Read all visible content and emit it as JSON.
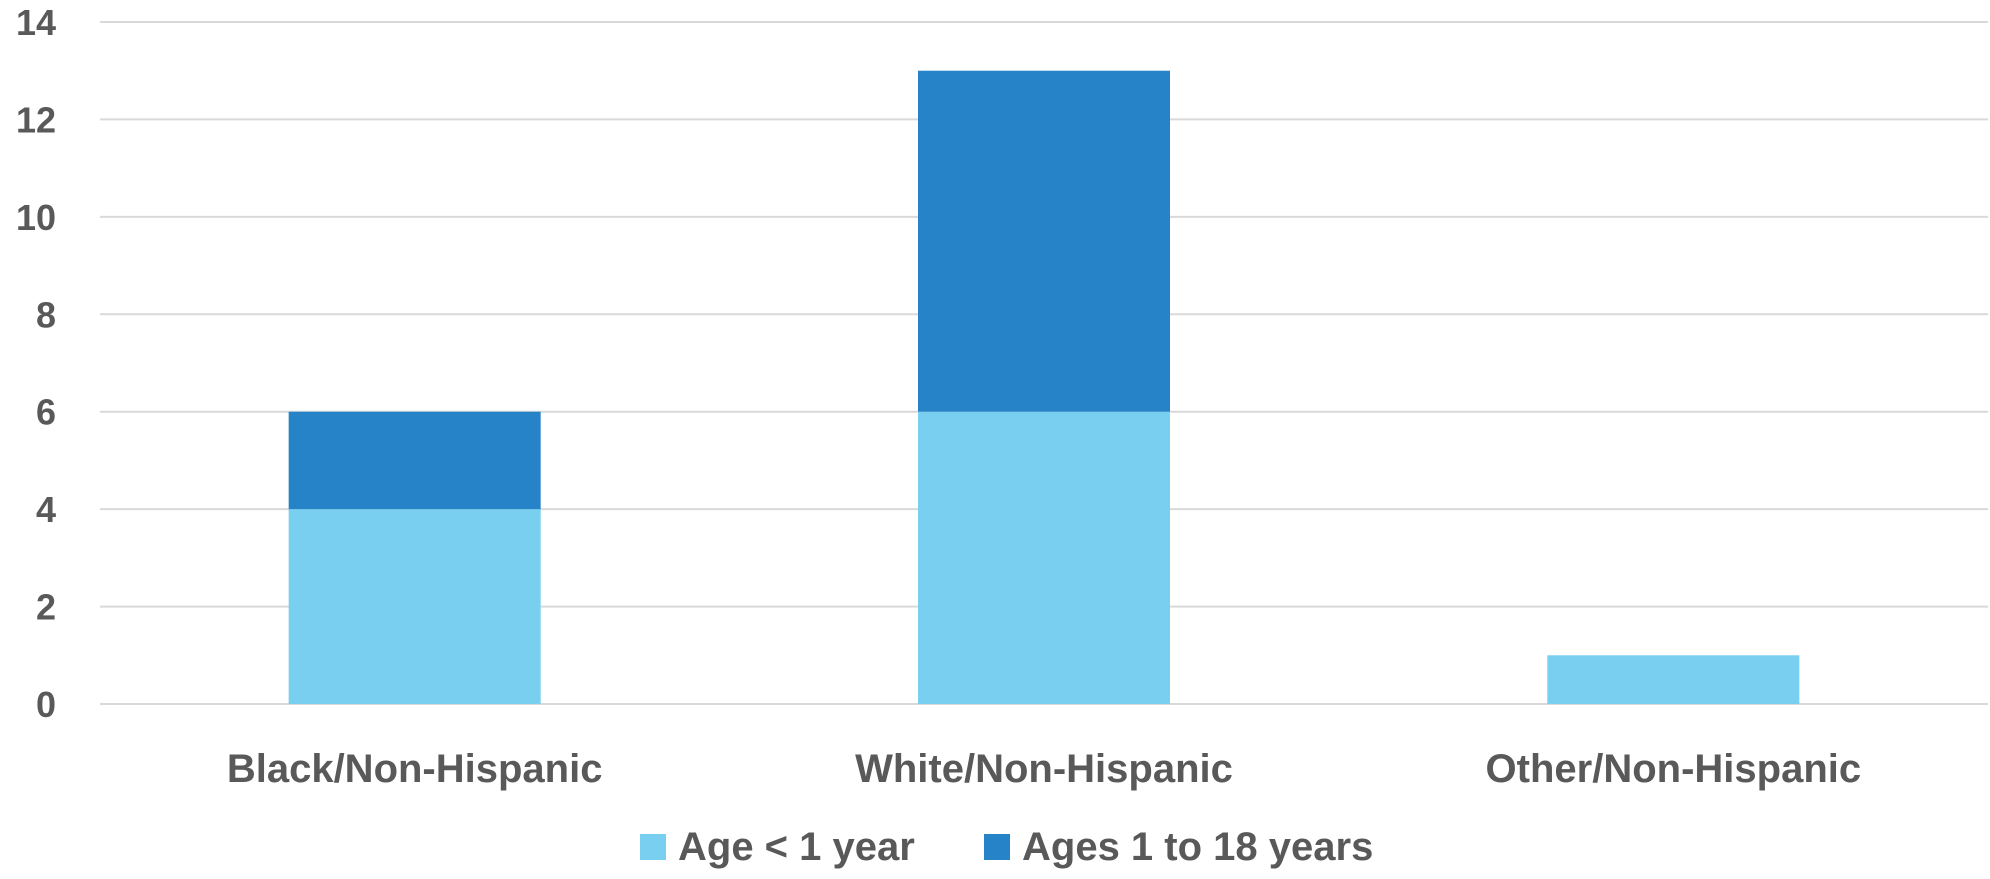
{
  "chart_data": {
    "type": "bar",
    "stacked": true,
    "categories": [
      "Black/Non-Hispanic",
      "White/Non-Hispanic",
      "Other/Non-Hispanic"
    ],
    "series": [
      {
        "name": "Age < 1 year",
        "values": [
          4,
          6,
          1
        ],
        "color": "#78cfef"
      },
      {
        "name": "Ages 1 to 18 years",
        "values": [
          2,
          7,
          0
        ],
        "color": "#2783c7"
      }
    ],
    "ylim": [
      0,
      14
    ],
    "yticks": [
      "0",
      "2",
      "4",
      "6",
      "8",
      "10",
      "12",
      "14"
    ],
    "grid": true,
    "legend_position": "bottom",
    "title": "",
    "xlabel": "",
    "ylabel": ""
  }
}
